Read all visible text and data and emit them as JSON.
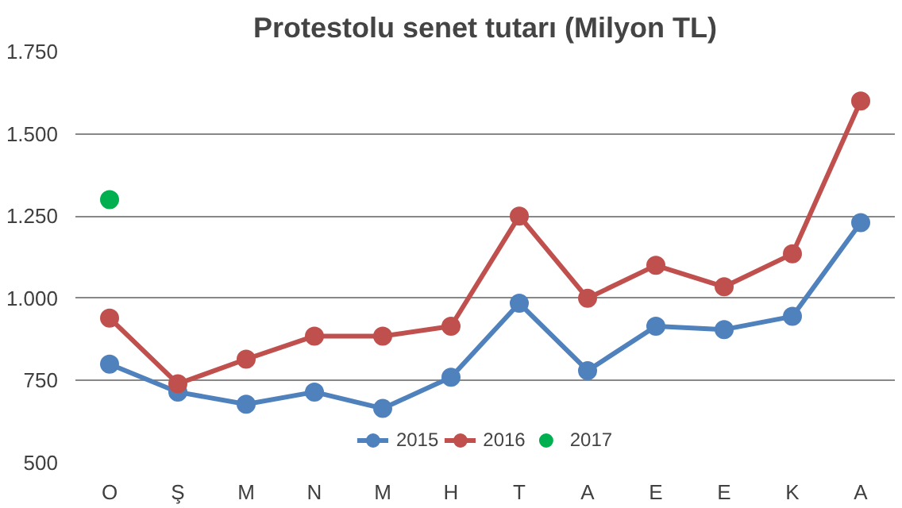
{
  "chart_data": {
    "type": "line",
    "title": "Protestolu senet tutarı (Milyon TL)",
    "categories": [
      "O",
      "Ş",
      "M",
      "N",
      "M",
      "H",
      "T",
      "A",
      "E",
      "E",
      "K",
      "A"
    ],
    "series": [
      {
        "name": "2015",
        "color": "#4f81bd",
        "values": [
          800,
          715,
          678,
          715,
          665,
          760,
          985,
          780,
          915,
          905,
          945,
          1230
        ]
      },
      {
        "name": "2016",
        "color": "#c0504d",
        "values": [
          940,
          740,
          815,
          885,
          885,
          915,
          1250,
          1000,
          1100,
          1035,
          1135,
          1600
        ]
      },
      {
        "name": "2017",
        "color": "#00b050",
        "values": [
          1300,
          null,
          null,
          null,
          null,
          null,
          null,
          null,
          null,
          null,
          null,
          null
        ]
      }
    ],
    "ylim": [
      500,
      1750
    ],
    "yticks": [
      500,
      750,
      {
        "value": 1000,
        "label": "1.000"
      },
      {
        "value": 1250,
        "label": "1.250"
      },
      {
        "value": 1500,
        "label": "1.500"
      },
      {
        "value": 1750,
        "label": "1.750"
      }
    ],
    "grid": "y",
    "legend": "bottom",
    "marker": "circle",
    "line_style": "solid"
  }
}
